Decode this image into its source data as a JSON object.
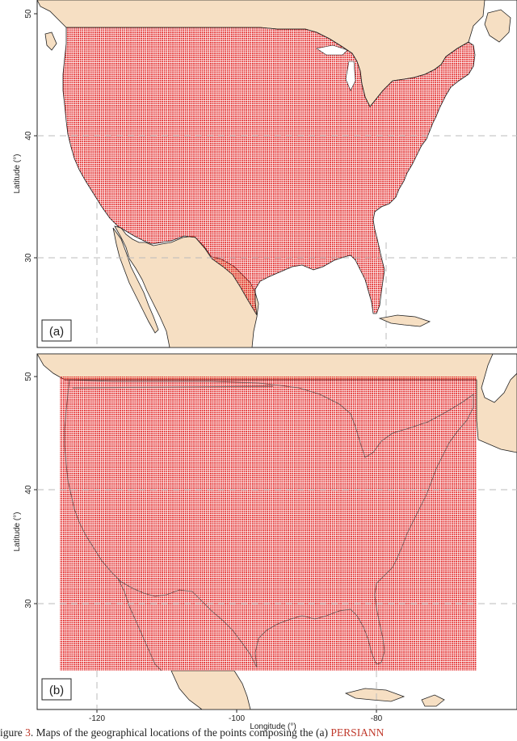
{
  "figure": {
    "panels": [
      {
        "label": "(a)",
        "y_axis_label": "Latitude (°)",
        "y_ticks": [
          "50",
          "40",
          "30"
        ],
        "grid_latitudes": [
          40,
          30
        ],
        "grid_longitudes": [
          -120,
          -80
        ],
        "coverage": "land",
        "lat_range": [
          24.5,
          49.5
        ]
      },
      {
        "label": "(b)",
        "y_axis_label": "Latitude (°)",
        "y_ticks": [
          "50",
          "40",
          "30"
        ],
        "x_axis_label": "Longitude (°)",
        "x_ticks": [
          "-120",
          "-100",
          "-80"
        ],
        "grid_latitudes": [
          40,
          30
        ],
        "grid_longitudes": [
          -120,
          -80
        ],
        "coverage": "rectangle",
        "lat_range": [
          24.5,
          50
        ],
        "lon_range": [
          -125,
          -67
        ]
      }
    ],
    "colors": {
      "land": "#f6dfc3",
      "water": "#ffffff",
      "coastline": "#222222",
      "points": "#e02020",
      "grid": "#bbbbbb",
      "caption_accent": "#c0392b"
    },
    "caption": {
      "prefix": "igure",
      "number": "3",
      "text": ". Maps of the geographical locations of the points composing the (a) ",
      "source": "PERSIANN"
    }
  }
}
